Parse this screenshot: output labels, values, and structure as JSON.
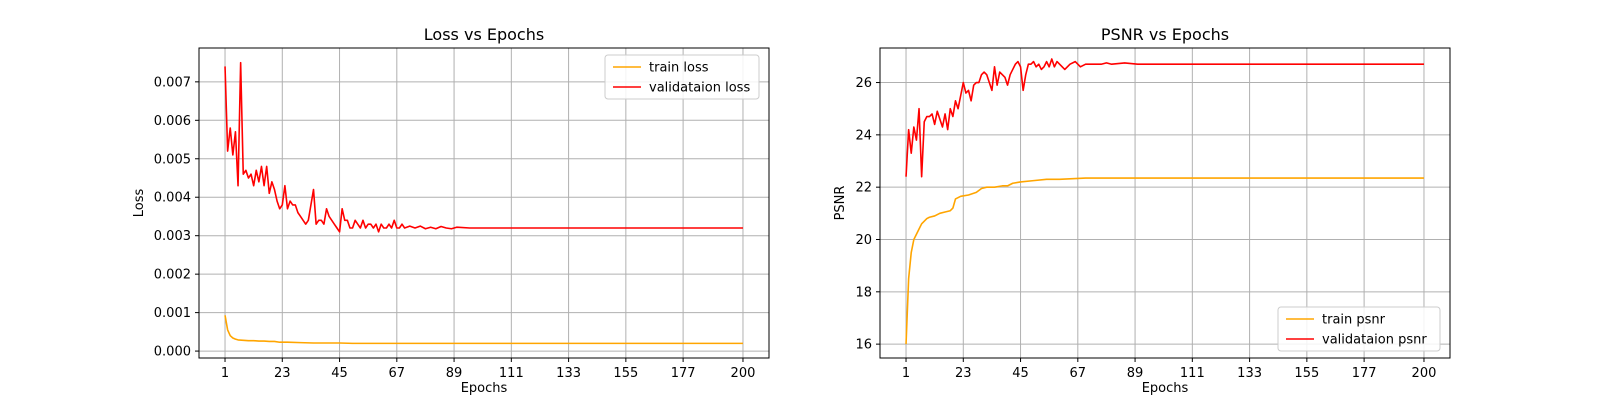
{
  "chart_data": [
    {
      "type": "line",
      "title": "Loss vs Epochs",
      "xlabel": "Epochs",
      "ylabel": "Loss",
      "xlim": [
        -9,
        210
      ],
      "ylim": [
        -0.00018,
        0.00788
      ],
      "xticks": [
        1,
        23,
        45,
        67,
        89,
        111,
        133,
        155,
        177,
        200
      ],
      "yticks": [
        0.0,
        0.001,
        0.002,
        0.003,
        0.004,
        0.005,
        0.006,
        0.007
      ],
      "ytick_labels": [
        "0.000",
        "0.001",
        "0.002",
        "0.003",
        "0.004",
        "0.005",
        "0.006",
        "0.007"
      ],
      "grid": true,
      "legend_position": "top-right",
      "series": [
        {
          "name": "train loss",
          "color": "#ffa500",
          "x": [
            1,
            2,
            3,
            4,
            5,
            6,
            8,
            10,
            12,
            14,
            16,
            18,
            20,
            22,
            25,
            30,
            35,
            40,
            45,
            50,
            60,
            70,
            80,
            90,
            100,
            110,
            120,
            130,
            140,
            150,
            160,
            170,
            180,
            190,
            200
          ],
          "y": [
            0.00093,
            0.00055,
            0.0004,
            0.00034,
            0.00031,
            0.00029,
            0.00028,
            0.00027,
            0.00027,
            0.00026,
            0.00026,
            0.00025,
            0.00025,
            0.00023,
            0.00023,
            0.00022,
            0.00021,
            0.00021,
            0.00021,
            0.0002,
            0.0002,
            0.0002,
            0.0002,
            0.0002,
            0.0002,
            0.0002,
            0.0002,
            0.0002,
            0.0002,
            0.0002,
            0.0002,
            0.0002,
            0.0002,
            0.0002,
            0.0002
          ]
        },
        {
          "name": "validataion loss",
          "color": "#ff0000",
          "x": [
            1,
            2,
            3,
            4,
            5,
            6,
            7,
            8,
            9,
            10,
            11,
            12,
            13,
            14,
            15,
            16,
            17,
            18,
            19,
            20,
            21,
            22,
            23,
            24,
            25,
            26,
            27,
            28,
            29,
            30,
            31,
            32,
            33,
            34,
            35,
            36,
            37,
            38,
            39,
            40,
            41,
            42,
            43,
            44,
            45,
            46,
            47,
            48,
            49,
            50,
            51,
            52,
            53,
            54,
            55,
            56,
            57,
            58,
            59,
            60,
            61,
            62,
            63,
            64,
            65,
            66,
            67,
            68,
            69,
            70,
            72,
            74,
            76,
            78,
            80,
            82,
            84,
            86,
            88,
            90,
            95,
            100,
            110,
            120,
            130,
            140,
            150,
            160,
            170,
            180,
            190,
            200
          ],
          "y": [
            0.0074,
            0.0052,
            0.0058,
            0.0051,
            0.0057,
            0.0043,
            0.0075,
            0.0046,
            0.0047,
            0.0045,
            0.0046,
            0.0043,
            0.0047,
            0.0044,
            0.0048,
            0.0043,
            0.0048,
            0.0041,
            0.0044,
            0.0042,
            0.0039,
            0.0037,
            0.0038,
            0.0043,
            0.0037,
            0.0039,
            0.0038,
            0.0038,
            0.0036,
            0.0035,
            0.0034,
            0.0033,
            0.0034,
            0.0038,
            0.0042,
            0.0033,
            0.0034,
            0.0034,
            0.0033,
            0.0037,
            0.0035,
            0.0034,
            0.0033,
            0.0032,
            0.0031,
            0.0037,
            0.0034,
            0.0034,
            0.0032,
            0.0032,
            0.0034,
            0.0033,
            0.0032,
            0.0034,
            0.0032,
            0.0033,
            0.0033,
            0.0032,
            0.0033,
            0.0031,
            0.0033,
            0.0032,
            0.0032,
            0.0033,
            0.0032,
            0.0034,
            0.0032,
            0.0032,
            0.0033,
            0.0032,
            0.00325,
            0.0032,
            0.00325,
            0.00318,
            0.00322,
            0.00318,
            0.00324,
            0.0032,
            0.00318,
            0.00322,
            0.0032,
            0.0032,
            0.0032,
            0.0032,
            0.0032,
            0.0032,
            0.0032,
            0.0032,
            0.0032,
            0.0032,
            0.0032,
            0.0032
          ]
        }
      ]
    },
    {
      "type": "line",
      "title": "PSNR vs Epochs",
      "xlabel": "Epochs",
      "ylabel": "PSNR",
      "xlim": [
        -9,
        210
      ],
      "ylim": [
        15.47,
        27.32
      ],
      "xticks": [
        1,
        23,
        45,
        67,
        89,
        111,
        133,
        155,
        177,
        200
      ],
      "yticks": [
        16,
        18,
        20,
        22,
        24,
        26
      ],
      "ytick_labels": [
        "16",
        "18",
        "20",
        "22",
        "24",
        "26"
      ],
      "grid": true,
      "legend_position": "bottom-right",
      "series": [
        {
          "name": "train psnr",
          "color": "#ffa500",
          "x": [
            1,
            2,
            3,
            4,
            5,
            6,
            7,
            8,
            9,
            10,
            12,
            14,
            16,
            18,
            19,
            20,
            22,
            25,
            28,
            30,
            32,
            35,
            38,
            40,
            42,
            45,
            50,
            55,
            60,
            70,
            80,
            90,
            100,
            110,
            120,
            130,
            140,
            150,
            160,
            170,
            180,
            190,
            200
          ],
          "y": [
            16.0,
            18.5,
            19.5,
            20.0,
            20.2,
            20.4,
            20.6,
            20.7,
            20.8,
            20.85,
            20.9,
            21.0,
            21.05,
            21.1,
            21.2,
            21.55,
            21.65,
            21.7,
            21.8,
            21.95,
            22.0,
            22.0,
            22.05,
            22.05,
            22.15,
            22.2,
            22.25,
            22.3,
            22.3,
            22.35,
            22.35,
            22.35,
            22.35,
            22.35,
            22.35,
            22.35,
            22.35,
            22.35,
            22.35,
            22.35,
            22.35,
            22.35,
            22.35
          ]
        },
        {
          "name": "validataion psnr",
          "color": "#ff0000",
          "x": [
            1,
            2,
            3,
            4,
            5,
            6,
            7,
            8,
            9,
            10,
            11,
            12,
            13,
            14,
            15,
            16,
            17,
            18,
            19,
            20,
            21,
            22,
            23,
            24,
            25,
            26,
            27,
            28,
            29,
            30,
            31,
            32,
            33,
            34,
            35,
            36,
            37,
            38,
            39,
            40,
            41,
            42,
            43,
            44,
            45,
            46,
            47,
            48,
            49,
            50,
            51,
            52,
            53,
            54,
            55,
            56,
            57,
            58,
            59,
            60,
            62,
            64,
            66,
            68,
            70,
            72,
            74,
            76,
            78,
            80,
            85,
            90,
            100,
            110,
            120,
            130,
            140,
            150,
            160,
            170,
            180,
            190,
            200
          ],
          "y": [
            22.4,
            24.2,
            23.3,
            24.3,
            23.8,
            25.0,
            22.4,
            24.5,
            24.7,
            24.7,
            24.8,
            24.4,
            24.9,
            24.6,
            24.3,
            24.8,
            24.2,
            25.0,
            24.7,
            25.3,
            25.0,
            25.5,
            26.0,
            25.6,
            25.7,
            25.3,
            25.9,
            26.0,
            26.0,
            26.3,
            26.4,
            26.3,
            26.0,
            25.7,
            26.6,
            25.9,
            26.4,
            26.3,
            26.2,
            25.9,
            26.3,
            26.5,
            26.7,
            26.8,
            26.6,
            25.7,
            26.3,
            26.7,
            26.7,
            26.8,
            26.6,
            26.7,
            26.5,
            26.6,
            26.8,
            26.6,
            26.9,
            26.6,
            26.8,
            26.7,
            26.5,
            26.7,
            26.8,
            26.6,
            26.7,
            26.7,
            26.7,
            26.7,
            26.75,
            26.7,
            26.75,
            26.7,
            26.7,
            26.7,
            26.7,
            26.7,
            26.7,
            26.7,
            26.7,
            26.7,
            26.7,
            26.7,
            26.7
          ]
        }
      ]
    }
  ]
}
